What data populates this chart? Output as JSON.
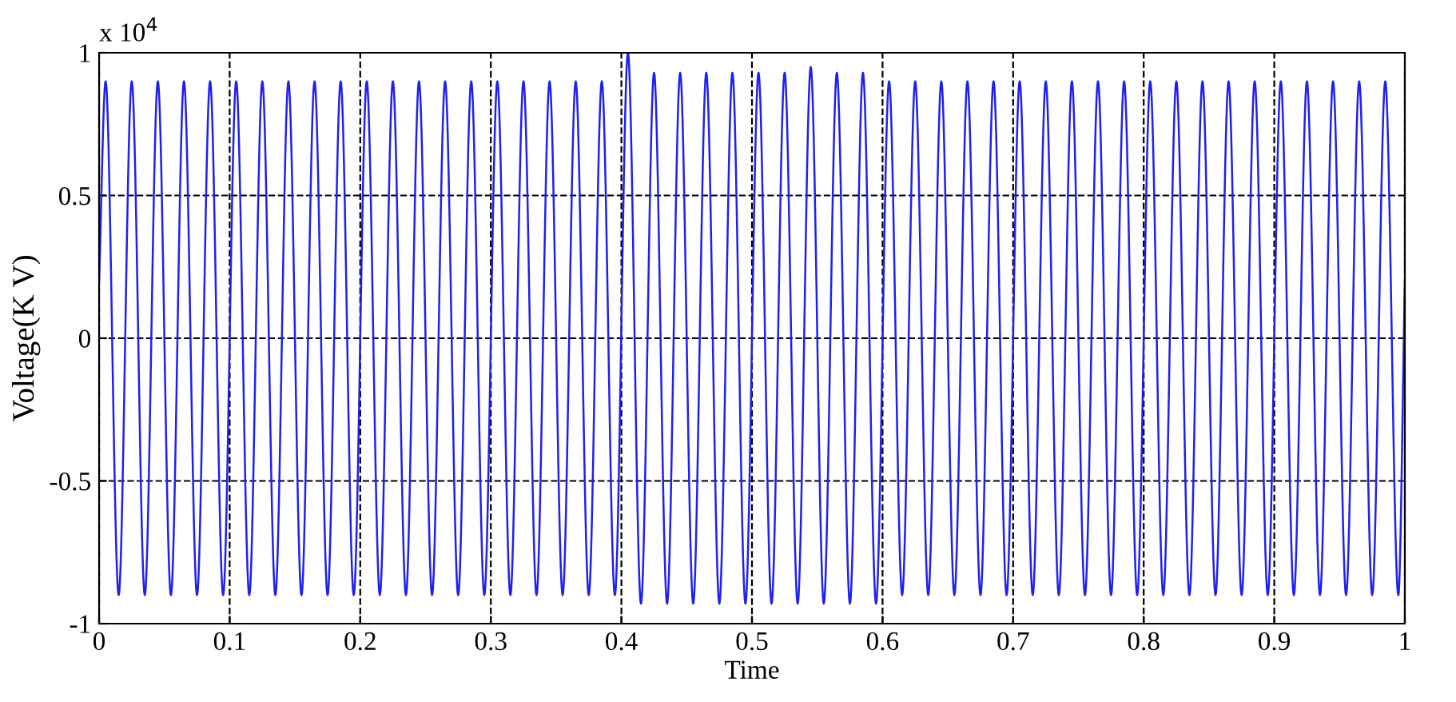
{
  "chart_data": {
    "type": "line",
    "xlabel": "Time",
    "ylabel": "Voltage(K V)",
    "annotations": [
      "x 10$^{4}$"
    ],
    "x": [
      0,
      0.005,
      0.015,
      0.025,
      0.035,
      0.045,
      0.055,
      0.065,
      0.075,
      0.085,
      0.095,
      0.105,
      0.115,
      0.125,
      0.135,
      0.145,
      0.155,
      0.165,
      0.175,
      0.185,
      0.195,
      0.205,
      0.215,
      0.225,
      0.235,
      0.245,
      0.255,
      0.265,
      0.275,
      0.285,
      0.295,
      0.305,
      0.315,
      0.325,
      0.335,
      0.345,
      0.355,
      0.365,
      0.375,
      0.385,
      0.395,
      0.405,
      0.415,
      0.425,
      0.435,
      0.445,
      0.455,
      0.465,
      0.475,
      0.485,
      0.495,
      0.505,
      0.515,
      0.525,
      0.535,
      0.545,
      0.555,
      0.565,
      0.575,
      0.585,
      0.595,
      0.605,
      0.615,
      0.625,
      0.635,
      0.645,
      0.655,
      0.665,
      0.675,
      0.685,
      0.695,
      0.705,
      0.715,
      0.725,
      0.735,
      0.745,
      0.755,
      0.765,
      0.775,
      0.785,
      0.795,
      0.805,
      0.815,
      0.825,
      0.835,
      0.845,
      0.855,
      0.865,
      0.875,
      0.885,
      0.895,
      0.905,
      0.915,
      0.925,
      0.935,
      0.945,
      0.955,
      0.965,
      0.975,
      0.985,
      0.995,
      1
    ],
    "series": [
      {
        "color": "#2020f0",
        "values": [
          0.2,
          0.9,
          -0.9,
          0.9,
          -0.9,
          0.9,
          -0.9,
          0.9,
          -0.9,
          0.9,
          -0.9,
          0.9,
          -0.9,
          0.9,
          -0.9,
          0.9,
          -0.9,
          0.9,
          -0.9,
          0.9,
          -0.9,
          0.9,
          -0.9,
          0.9,
          -0.9,
          0.9,
          -0.9,
          0.9,
          -0.9,
          0.9,
          -0.9,
          0.9,
          -0.9,
          0.9,
          -0.9,
          0.9,
          -0.9,
          0.9,
          -0.9,
          0.9,
          -0.9,
          1.0,
          -0.93,
          0.93,
          -0.93,
          0.93,
          -0.93,
          0.93,
          -0.93,
          0.93,
          -0.93,
          0.93,
          -0.93,
          0.93,
          -0.93,
          0.95,
          -0.93,
          0.93,
          -0.93,
          0.93,
          -0.93,
          0.9,
          -0.9,
          0.9,
          -0.9,
          0.9,
          -0.9,
          0.9,
          -0.9,
          0.9,
          -0.9,
          0.9,
          -0.9,
          0.9,
          -0.9,
          0.9,
          -0.9,
          0.9,
          -0.9,
          0.9,
          -0.9,
          0.9,
          -0.9,
          0.9,
          -0.9,
          0.9,
          -0.9,
          0.9,
          -0.9,
          0.9,
          -0.9,
          0.9,
          -0.9,
          0.9,
          -0.9,
          0.9,
          -0.9,
          0.9,
          -0.9,
          0.9,
          -0.9,
          0.2
        ]
      }
    ],
    "xlim": [
      0,
      1
    ],
    "xticks": [
      0,
      0.1,
      0.2,
      0.3,
      0.4,
      0.5,
      0.6,
      0.7,
      0.8,
      0.9,
      1
    ],
    "ylim": [
      -1,
      1
    ],
    "yticks": [
      -1,
      -0.5,
      0,
      0.5,
      1
    ],
    "grid": true,
    "line_style": "solid"
  }
}
